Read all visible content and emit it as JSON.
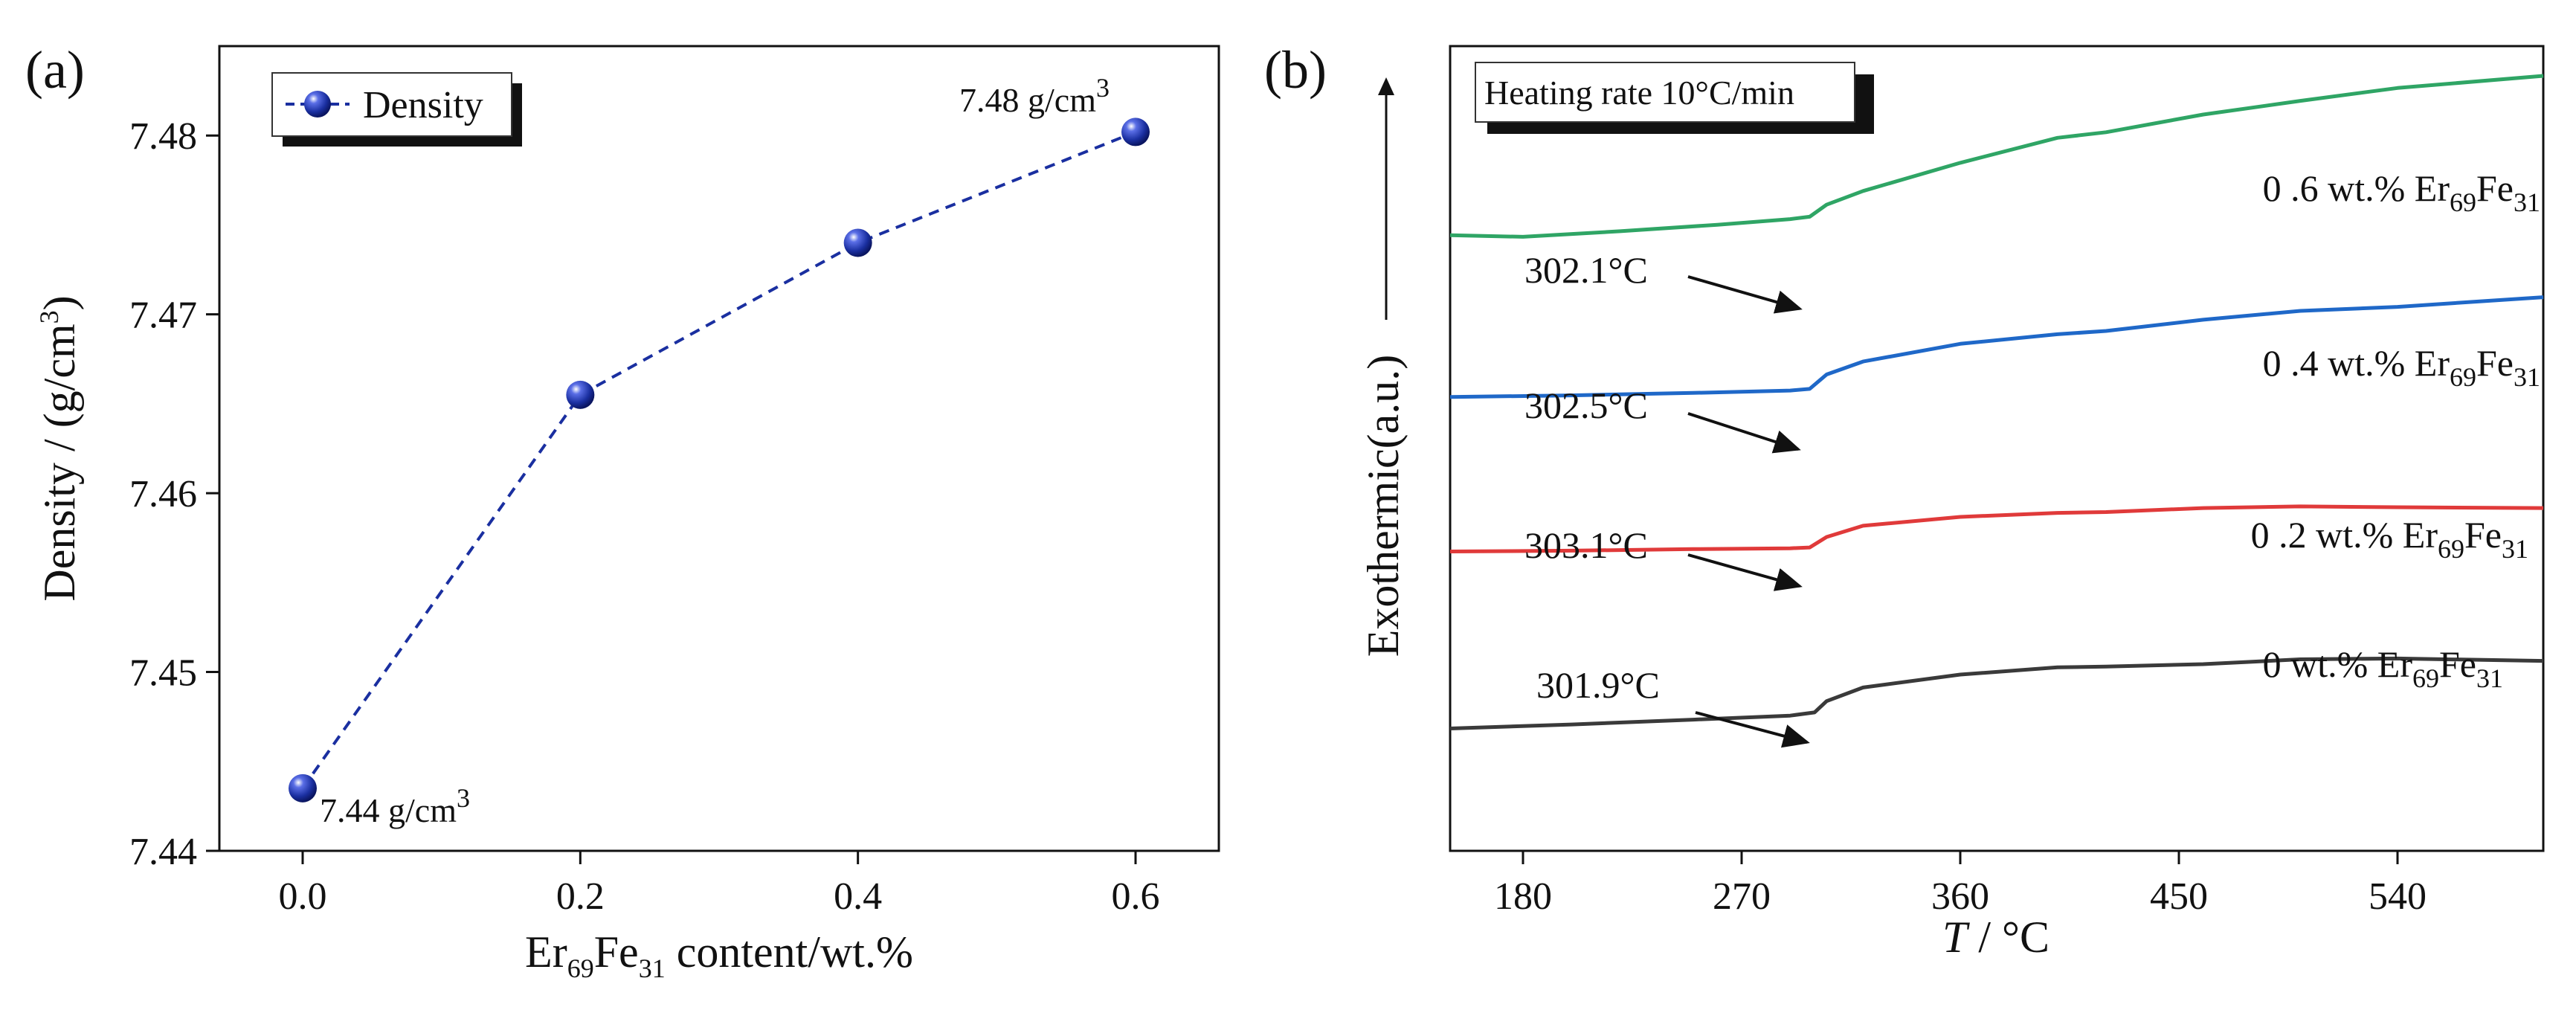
{
  "chart_data": [
    {
      "type": "line",
      "panel_label": "(a)",
      "xlabel": {
        "prefix": "Er",
        "sub1": "69",
        "mid": "Fe",
        "sub2": "31",
        "suffix": " content/wt.%"
      },
      "ylabel": {
        "text": "Density / (g/cm",
        "sup": "3",
        "close": ")"
      },
      "xlim": [
        -0.06,
        0.66
      ],
      "ylim": [
        7.44,
        7.485
      ],
      "xticks": [
        0.0,
        0.2,
        0.4,
        0.6
      ],
      "xtick_labels": [
        "0.0",
        "0.2",
        "0.4",
        "0.6"
      ],
      "yticks": [
        7.44,
        7.45,
        7.46,
        7.47,
        7.48
      ],
      "ytick_labels": [
        "7.44",
        "7.45",
        "7.46",
        "7.47",
        "7.48"
      ],
      "series": [
        {
          "name": "Density",
          "color": "#1a2fa0",
          "x": [
            0.0,
            0.2,
            0.4,
            0.6
          ],
          "y": [
            7.4435,
            7.4655,
            7.474,
            7.4802
          ]
        }
      ],
      "legend": {
        "label": "Density",
        "position": "top-left"
      },
      "annotations": [
        {
          "text": "7.44 g/cm",
          "sup": "3",
          "x": 0.0,
          "y": 7.4435
        },
        {
          "text": "7.48 g/cm",
          "sup": "3",
          "x": 0.6,
          "y": 7.4802
        }
      ]
    },
    {
      "type": "line",
      "panel_label": "(b)",
      "xlabel": {
        "italic": "T",
        "rest": " / °C"
      },
      "ylabel": "Exothermic(a.u.)",
      "xlim": [
        150,
        600
      ],
      "ylim": [
        0,
        100
      ],
      "xticks": [
        180,
        270,
        360,
        450,
        540
      ],
      "xtick_labels": [
        "180",
        "270",
        "360",
        "450",
        "540"
      ],
      "legend_box": "Heating rate 10°C/min",
      "series": [
        {
          "name": "0 .6 wt.% Er69Fe31",
          "color": "#2fa565",
          "x": [
            150,
            180,
            220,
            260,
            290,
            298,
            305,
            320,
            360,
            400,
            420,
            460,
            500,
            540,
            600
          ],
          "y": [
            76.5,
            76.3,
            77.0,
            77.8,
            78.5,
            78.8,
            80.3,
            82.0,
            85.5,
            88.6,
            89.3,
            91.5,
            93.2,
            94.8,
            96.3
          ]
        },
        {
          "name": "0 .4 wt.% Er69Fe31",
          "color": "#1f68c8",
          "x": [
            150,
            200,
            250,
            290,
            298,
            305,
            320,
            360,
            400,
            420,
            460,
            500,
            540,
            600
          ],
          "y": [
            56.4,
            56.6,
            56.9,
            57.2,
            57.4,
            59.2,
            60.8,
            63.0,
            64.2,
            64.6,
            66.0,
            67.1,
            67.6,
            68.8
          ]
        },
        {
          "name": "0 .2 wt.% Er69Fe31",
          "color": "#e03a3a",
          "x": [
            150,
            200,
            250,
            290,
            298,
            305,
            320,
            360,
            400,
            420,
            460,
            500,
            540,
            600
          ],
          "y": [
            37.2,
            37.3,
            37.5,
            37.6,
            37.7,
            39.0,
            40.4,
            41.5,
            42.0,
            42.1,
            42.6,
            42.8,
            42.7,
            42.6
          ]
        },
        {
          "name": "0 wt.% Er69Fe31",
          "color": "#3a3a3a",
          "x": [
            150,
            200,
            250,
            290,
            300,
            305,
            320,
            360,
            400,
            420,
            460,
            500,
            540,
            600
          ],
          "y": [
            15.2,
            15.7,
            16.3,
            16.8,
            17.2,
            18.6,
            20.3,
            21.9,
            22.8,
            22.9,
            23.2,
            23.8,
            23.9,
            23.6
          ]
        }
      ],
      "curve_labels": [
        {
          "prefix": "0 .6 wt.% Er",
          "sub1": "69",
          "mid": "Fe",
          "sub2": "31"
        },
        {
          "prefix": "0 .4 wt.% Er",
          "sub1": "69",
          "mid": "Fe",
          "sub2": "31"
        },
        {
          "prefix": "0 .2 wt.% Er",
          "sub1": "69",
          "mid": "Fe",
          "sub2": "31"
        },
        {
          "prefix": "0 wt.% Er",
          "sub1": "69",
          "mid": "Fe",
          "sub2": "31"
        }
      ],
      "annotations": [
        {
          "text": "302.1°C",
          "x": 302.1,
          "y": 78.8
        },
        {
          "text": "302.5°C",
          "x": 302.5,
          "y": 57.4
        },
        {
          "text": "303.1°C",
          "x": 303.1,
          "y": 37.7
        },
        {
          "text": "301.9°C",
          "x": 301.9,
          "y": 17.2
        }
      ]
    }
  ]
}
